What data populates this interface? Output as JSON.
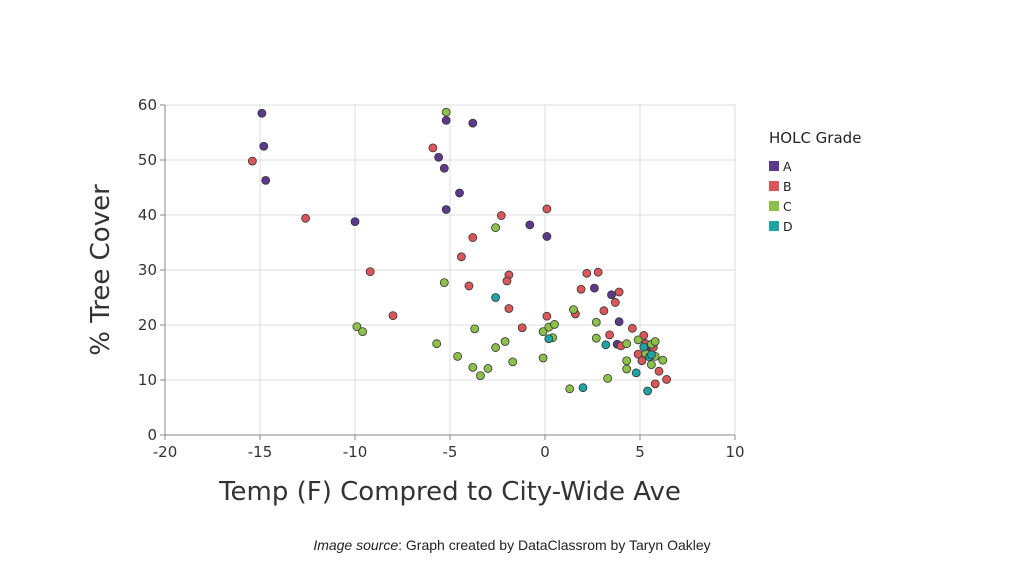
{
  "caption": {
    "prefix": "Image source",
    "text": ": Graph created by DataClassrom by Taryn Oakley"
  },
  "chart_data": {
    "type": "scatter",
    "xlabel": "Temp (F) Compred to City-Wide Ave",
    "ylabel": "% Tree Cover",
    "xlim": [
      -20,
      10
    ],
    "ylim": [
      0,
      60
    ],
    "x_ticks": [
      -20,
      -15,
      -10,
      -5,
      0,
      5,
      10
    ],
    "y_ticks": [
      0,
      10,
      20,
      30,
      40,
      50,
      60
    ],
    "grid": true,
    "legend": {
      "title": "HOLC Grade",
      "position": "right"
    },
    "series": [
      {
        "name": "A",
        "color": "#5b3a8c",
        "points": [
          [
            -14.9,
            58.5
          ],
          [
            -14.8,
            52.5
          ],
          [
            -14.7,
            46.3
          ],
          [
            -10.0,
            38.8
          ],
          [
            -5.2,
            57.2
          ],
          [
            -3.8,
            56.7
          ],
          [
            -5.6,
            50.5
          ],
          [
            -5.3,
            48.5
          ],
          [
            -4.5,
            44.0
          ],
          [
            -5.2,
            41.0
          ],
          [
            -0.8,
            38.2
          ],
          [
            0.1,
            36.1
          ],
          [
            2.6,
            26.7
          ],
          [
            3.5,
            25.5
          ],
          [
            3.9,
            20.6
          ],
          [
            3.8,
            16.5
          ],
          [
            5.5,
            15.2
          ]
        ]
      },
      {
        "name": "B",
        "color": "#d9575a",
        "points": [
          [
            -15.4,
            49.8
          ],
          [
            -12.6,
            39.4
          ],
          [
            -9.2,
            29.7
          ],
          [
            -8.0,
            21.7
          ],
          [
            -5.9,
            52.2
          ],
          [
            -3.8,
            35.9
          ],
          [
            -4.4,
            32.4
          ],
          [
            -4.0,
            27.1
          ],
          [
            -2.3,
            39.9
          ],
          [
            0.1,
            41.1
          ],
          [
            -1.9,
            29.1
          ],
          [
            -2.0,
            28.0
          ],
          [
            -1.9,
            23.0
          ],
          [
            -1.2,
            19.5
          ],
          [
            0.1,
            21.6
          ],
          [
            1.6,
            22.0
          ],
          [
            1.9,
            26.5
          ],
          [
            2.2,
            29.4
          ],
          [
            2.8,
            29.6
          ],
          [
            3.1,
            22.6
          ],
          [
            3.7,
            24.1
          ],
          [
            3.9,
            26.0
          ],
          [
            3.4,
            18.2
          ],
          [
            4.6,
            19.4
          ],
          [
            5.2,
            18.1
          ],
          [
            4.0,
            16.2
          ],
          [
            5.3,
            16.6
          ],
          [
            4.9,
            14.7
          ],
          [
            5.1,
            13.5
          ],
          [
            5.7,
            15.9
          ],
          [
            6.0,
            11.6
          ],
          [
            5.8,
            9.3
          ],
          [
            6.4,
            10.1
          ]
        ]
      },
      {
        "name": "C",
        "color": "#8cc04a",
        "points": [
          [
            -5.2,
            58.7
          ],
          [
            -2.6,
            37.7
          ],
          [
            -5.3,
            27.7
          ],
          [
            -9.9,
            19.7
          ],
          [
            -9.6,
            18.8
          ],
          [
            -5.7,
            16.6
          ],
          [
            -3.7,
            19.3
          ],
          [
            -4.6,
            14.3
          ],
          [
            -3.8,
            12.3
          ],
          [
            -3.4,
            10.8
          ],
          [
            -3.0,
            12.1
          ],
          [
            -2.6,
            15.9
          ],
          [
            -2.1,
            17.0
          ],
          [
            -1.7,
            13.3
          ],
          [
            -0.1,
            18.8
          ],
          [
            -0.1,
            14.0
          ],
          [
            0.2,
            19.6
          ],
          [
            0.5,
            20.1
          ],
          [
            0.4,
            17.7
          ],
          [
            1.5,
            22.8
          ],
          [
            2.7,
            20.5
          ],
          [
            2.7,
            17.6
          ],
          [
            4.3,
            16.6
          ],
          [
            4.9,
            17.3
          ],
          [
            4.3,
            13.5
          ],
          [
            4.3,
            12.0
          ],
          [
            3.3,
            10.3
          ],
          [
            1.3,
            8.4
          ],
          [
            5.3,
            14.8
          ],
          [
            5.6,
            16.5
          ],
          [
            5.8,
            17.0
          ],
          [
            5.8,
            14.3
          ],
          [
            5.6,
            12.8
          ],
          [
            6.2,
            13.6
          ]
        ]
      },
      {
        "name": "D",
        "color": "#1fa3a3",
        "points": [
          [
            -2.6,
            25.0
          ],
          [
            0.2,
            17.5
          ],
          [
            2.0,
            8.6
          ],
          [
            3.2,
            16.4
          ],
          [
            5.2,
            16.0
          ],
          [
            5.5,
            14.2
          ],
          [
            5.6,
            14.6
          ],
          [
            4.8,
            11.3
          ],
          [
            5.4,
            8.0
          ]
        ]
      }
    ]
  }
}
